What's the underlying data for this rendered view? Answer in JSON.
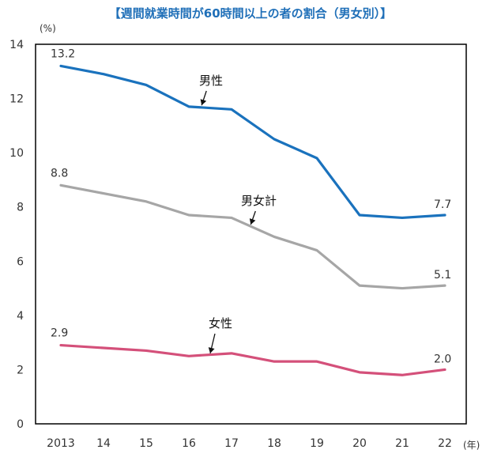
{
  "chart_data": {
    "type": "line",
    "title": "【週間就業時間が60時間以上の者の割合（男女別）】",
    "y_unit": "(%)",
    "x_unit": "(年)",
    "ylim": [
      0,
      14
    ],
    "yticks": [
      0,
      2,
      4,
      6,
      8,
      10,
      12,
      14
    ],
    "categories": [
      "2013",
      "14",
      "15",
      "16",
      "17",
      "18",
      "19",
      "20",
      "21",
      "22"
    ],
    "grid": false,
    "series": [
      {
        "name": "男性",
        "color": "#1a72bd",
        "values": [
          13.2,
          12.9,
          12.5,
          11.7,
          11.6,
          10.5,
          9.8,
          7.7,
          7.6,
          7.7
        ],
        "labels": {
          "first": "13.2",
          "last": "7.7"
        }
      },
      {
        "name": "男女計",
        "color": "#a6a6a6",
        "values": [
          8.8,
          8.5,
          8.2,
          7.7,
          7.6,
          6.9,
          6.4,
          5.1,
          5.0,
          5.1
        ],
        "labels": {
          "first": "8.8",
          "last": "5.1"
        }
      },
      {
        "name": "女性",
        "color": "#d4507a",
        "values": [
          2.9,
          2.8,
          2.7,
          2.5,
          2.6,
          2.3,
          2.3,
          1.9,
          1.8,
          2.0
        ],
        "labels": {
          "first": "2.9",
          "last": "2.0"
        }
      }
    ]
  }
}
